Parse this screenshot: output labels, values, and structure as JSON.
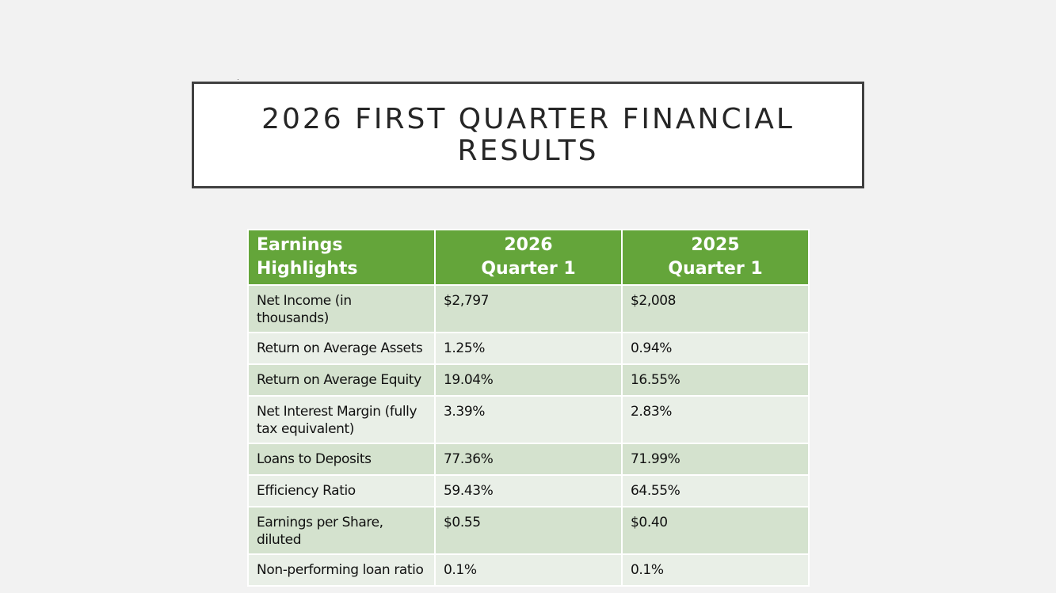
{
  "slide": {
    "title": "2026 FIRST QUARTER FINANCIAL RESULTS"
  },
  "table": {
    "headers": {
      "label_line1": "Earnings",
      "label_line2": "Highlights",
      "col2_line1": "2026",
      "col2_line2": "Quarter 1",
      "col3_line1": "2025",
      "col3_line2": "Quarter 1"
    },
    "rows": [
      {
        "metric": "Net Income (in thousands)",
        "q2026": "$2,797",
        "q2025": "$2,008"
      },
      {
        "metric": "Return on Average Assets",
        "q2026": "1.25%",
        "q2025": "0.94%"
      },
      {
        "metric": "Return on Average Equity",
        "q2026": "19.04%",
        "q2025": "16.55%"
      },
      {
        "metric": "Net Interest Margin (fully tax equivalent)",
        "q2026": "3.39%",
        "q2025": "2.83%"
      },
      {
        "metric": "Loans to Deposits",
        "q2026": "77.36%",
        "q2025": "71.99%"
      },
      {
        "metric": "Efficiency Ratio",
        "q2026": "59.43%",
        "q2025": "64.55%"
      },
      {
        "metric": "Earnings per Share, diluted",
        "q2026": "$0.55",
        "q2025": "$0.40"
      },
      {
        "metric": "Non-performing loan ratio",
        "q2026": "0.1%",
        "q2025": "0.1%"
      }
    ]
  },
  "colors": {
    "header_green": "#64a53a",
    "row_odd": "#d4e2ce",
    "row_even": "#e9efe7",
    "background": "#f2f2f2",
    "title_border": "#404040"
  }
}
